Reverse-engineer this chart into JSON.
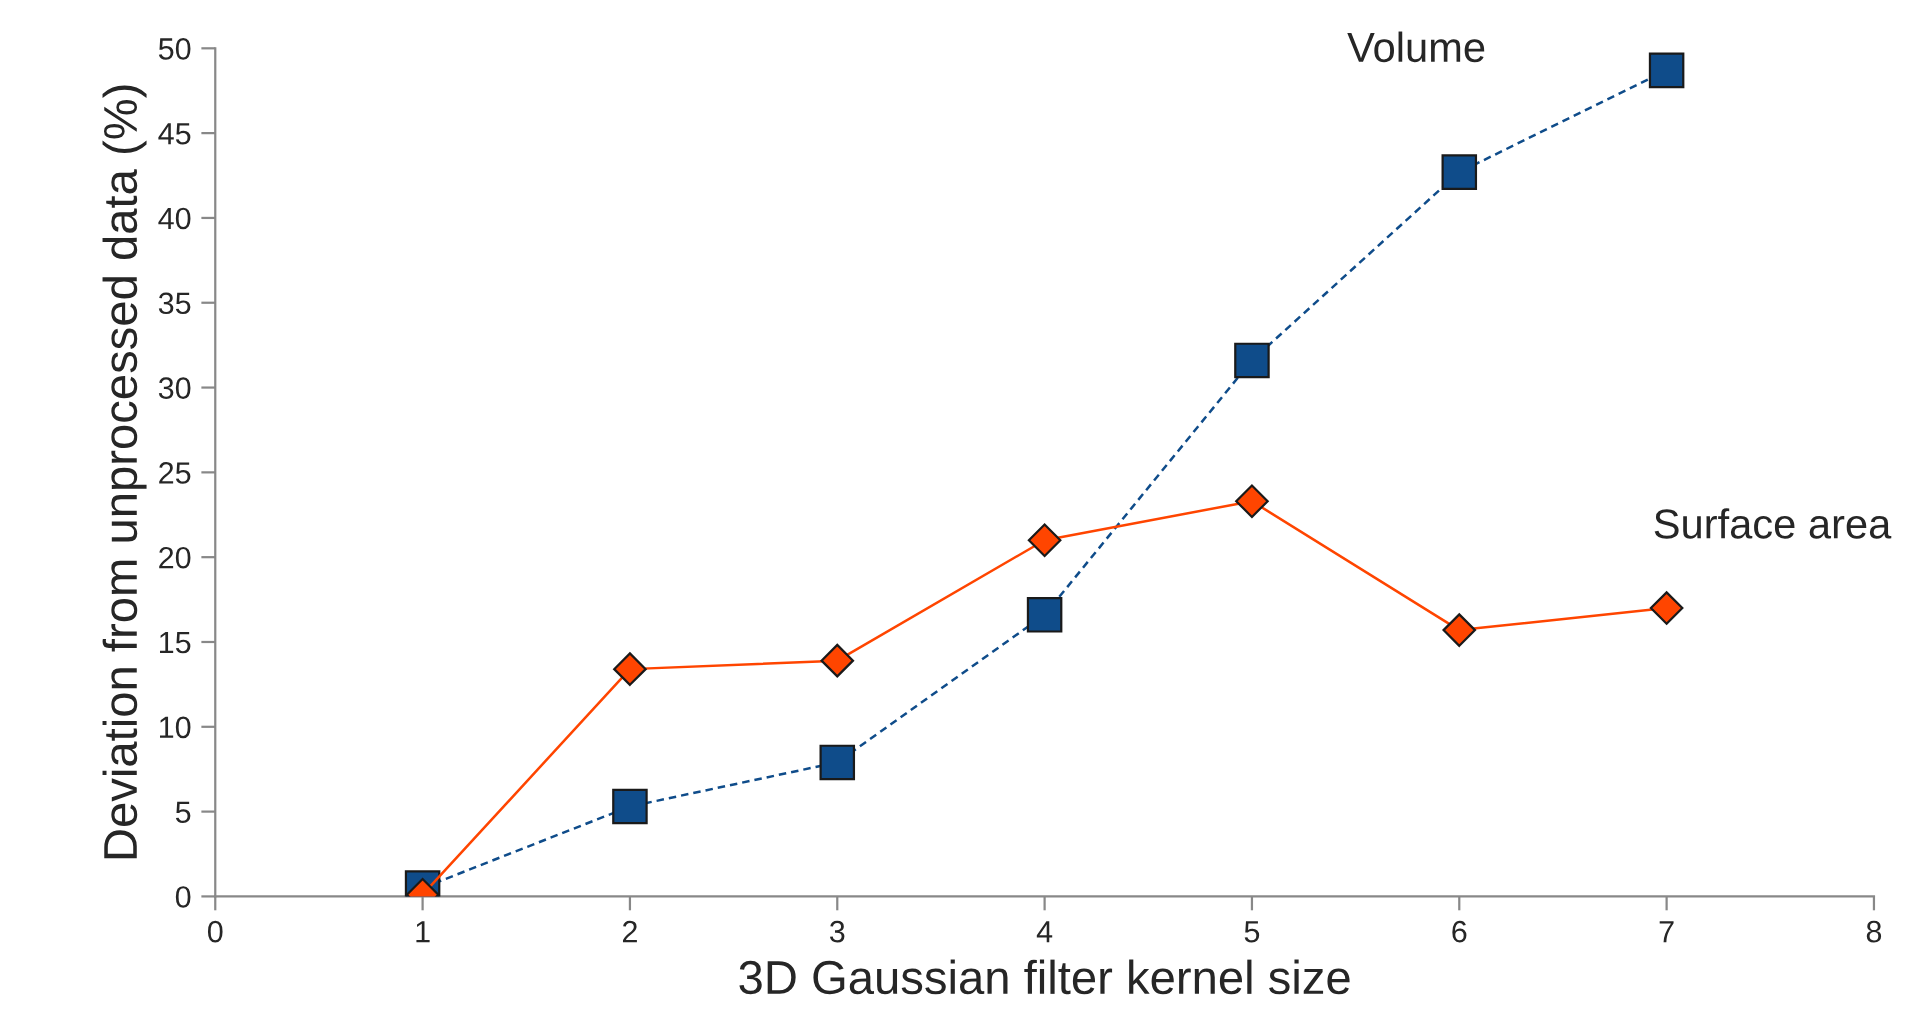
{
  "chart_data": {
    "type": "line",
    "x": [
      1,
      2,
      3,
      4,
      5,
      6,
      7
    ],
    "series": [
      {
        "name": "Volume",
        "color": "#0f4c8a",
        "marker": "square",
        "line_style": "dashed",
        "values": [
          0.5,
          5.3,
          7.9,
          16.6,
          31.6,
          42.7,
          48.7
        ]
      },
      {
        "name": "Surface area",
        "color": "#ff4500",
        "marker": "diamond",
        "line_style": "solid",
        "values": [
          0.1,
          13.4,
          13.9,
          21.0,
          23.3,
          15.7,
          17.0
        ]
      }
    ],
    "xlabel": "3D Gaussian filter kernel size",
    "ylabel": "Deviation from unprocessed data (%)",
    "xlim": [
      0,
      8
    ],
    "xticks": [
      0,
      1,
      2,
      3,
      4,
      5,
      6,
      7,
      8
    ],
    "ylim": [
      0,
      50
    ],
    "yticks": [
      0,
      5,
      10,
      15,
      20,
      25,
      30,
      35,
      40,
      45,
      50
    ],
    "grid": false,
    "legend": false
  }
}
